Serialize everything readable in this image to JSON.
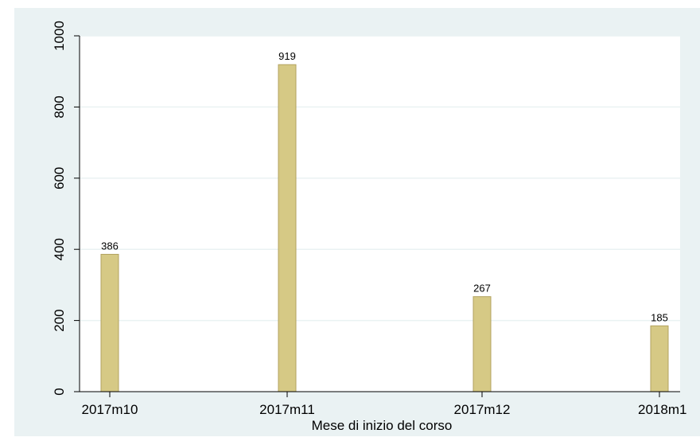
{
  "chart_data": {
    "type": "bar",
    "title": "",
    "xlabel": "Mese di inizio del corso",
    "ylabel": "",
    "x": [
      0,
      1,
      2,
      3
    ],
    "categories": [
      "2017m10",
      "2017m11",
      "2017m12",
      "2018m1"
    ],
    "values": [
      386,
      919,
      267,
      185
    ],
    "data_labels": [
      "386",
      "919",
      "267",
      "185"
    ],
    "yticks": [
      0,
      200,
      400,
      600,
      800,
      1000
    ],
    "ytick_labels": [
      "0",
      "200",
      "400",
      "600",
      "800",
      "1000"
    ],
    "ylim": [
      0,
      1000
    ],
    "grid": true,
    "colors": {
      "outer_background": "#eaf2f3",
      "plot_background": "#ffffff",
      "bar_fill": "#d6c985",
      "bar_stroke": "#b3a260",
      "gridline": "#eaf2f3",
      "axis": "#000000"
    }
  }
}
